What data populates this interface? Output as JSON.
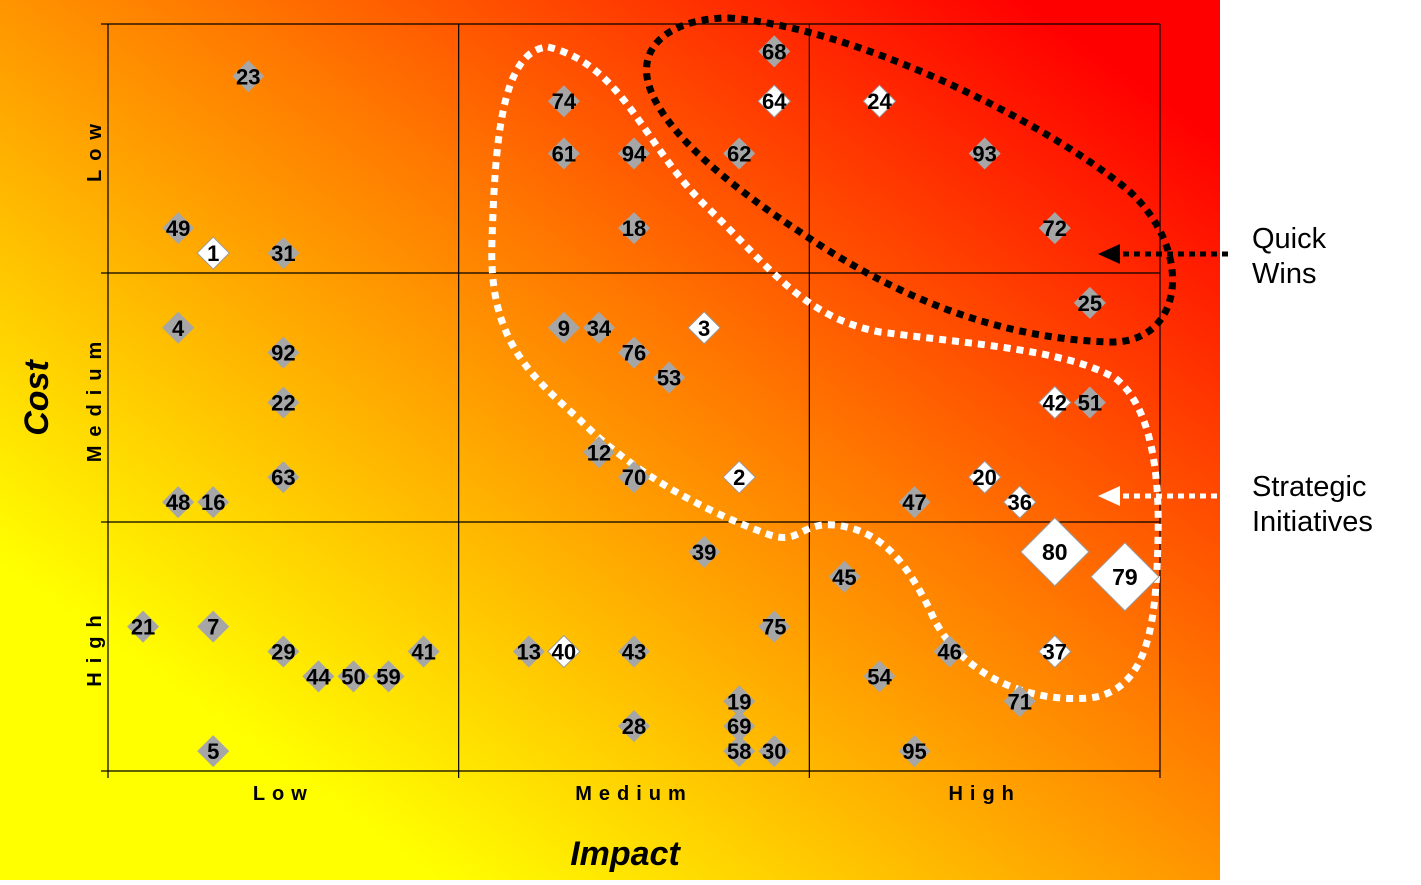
{
  "chart_data": {
    "type": "scatter",
    "title": "",
    "xlabel": "Impact",
    "ylabel": "Cost",
    "x_categories": [
      "Low",
      "Medium",
      "High"
    ],
    "y_categories": [
      "Low",
      "Medium",
      "High"
    ],
    "xlim": [
      0,
      3
    ],
    "ylim": [
      0,
      3
    ],
    "y_axis_note": "y measured downward from top (Low cost at top, High cost at bottom)",
    "grid": true,
    "marker": "diamond",
    "colors": {
      "bg_low": "#ffff00",
      "bg_mid": "#ff7a00",
      "bg_high": "#ff0000",
      "marker_gray": "#a6a6a6",
      "marker_white": "#ffffff",
      "quick_wins": "#000000",
      "strategic": "#ffffff"
    },
    "points": [
      {
        "label": "68",
        "x": 1.9,
        "y": 0.11,
        "fill": "gray",
        "size": "m"
      },
      {
        "label": "23",
        "x": 0.4,
        "y": 0.21,
        "fill": "gray",
        "size": "m"
      },
      {
        "label": "74",
        "x": 1.3,
        "y": 0.31,
        "fill": "gray",
        "size": "m"
      },
      {
        "label": "64",
        "x": 1.9,
        "y": 0.31,
        "fill": "white",
        "size": "m"
      },
      {
        "label": "24",
        "x": 2.2,
        "y": 0.31,
        "fill": "white",
        "size": "m"
      },
      {
        "label": "61",
        "x": 1.3,
        "y": 0.52,
        "fill": "gray",
        "size": "m"
      },
      {
        "label": "94",
        "x": 1.5,
        "y": 0.52,
        "fill": "gray",
        "size": "m"
      },
      {
        "label": "62",
        "x": 1.8,
        "y": 0.52,
        "fill": "gray",
        "size": "m"
      },
      {
        "label": "93",
        "x": 2.5,
        "y": 0.52,
        "fill": "gray",
        "size": "m"
      },
      {
        "label": "49",
        "x": 0.2,
        "y": 0.82,
        "fill": "gray",
        "size": "m"
      },
      {
        "label": "18",
        "x": 1.5,
        "y": 0.82,
        "fill": "gray",
        "size": "m"
      },
      {
        "label": "72",
        "x": 2.7,
        "y": 0.82,
        "fill": "gray",
        "size": "m"
      },
      {
        "label": "1",
        "x": 0.3,
        "y": 0.92,
        "fill": "white",
        "size": "m"
      },
      {
        "label": "31",
        "x": 0.5,
        "y": 0.92,
        "fill": "gray",
        "size": "m"
      },
      {
        "label": "25",
        "x": 2.8,
        "y": 1.12,
        "fill": "gray",
        "size": "m"
      },
      {
        "label": "4",
        "x": 0.2,
        "y": 1.22,
        "fill": "gray",
        "size": "m"
      },
      {
        "label": "9",
        "x": 1.3,
        "y": 1.22,
        "fill": "gray",
        "size": "m"
      },
      {
        "label": "34",
        "x": 1.4,
        "y": 1.22,
        "fill": "gray",
        "size": "m"
      },
      {
        "label": "3",
        "x": 1.7,
        "y": 1.22,
        "fill": "white",
        "size": "m"
      },
      {
        "label": "92",
        "x": 0.5,
        "y": 1.32,
        "fill": "gray",
        "size": "m"
      },
      {
        "label": "76",
        "x": 1.5,
        "y": 1.32,
        "fill": "gray",
        "size": "m"
      },
      {
        "label": "53",
        "x": 1.6,
        "y": 1.42,
        "fill": "gray",
        "size": "m"
      },
      {
        "label": "22",
        "x": 0.5,
        "y": 1.52,
        "fill": "gray",
        "size": "m"
      },
      {
        "label": "42",
        "x": 2.7,
        "y": 1.52,
        "fill": "white",
        "size": "m"
      },
      {
        "label": "51",
        "x": 2.8,
        "y": 1.52,
        "fill": "gray",
        "size": "m"
      },
      {
        "label": "12",
        "x": 1.4,
        "y": 1.72,
        "fill": "gray",
        "size": "m"
      },
      {
        "label": "63",
        "x": 0.5,
        "y": 1.82,
        "fill": "gray",
        "size": "m"
      },
      {
        "label": "70",
        "x": 1.5,
        "y": 1.82,
        "fill": "gray",
        "size": "m"
      },
      {
        "label": "2",
        "x": 1.8,
        "y": 1.82,
        "fill": "white",
        "size": "m"
      },
      {
        "label": "20",
        "x": 2.5,
        "y": 1.82,
        "fill": "white",
        "size": "m"
      },
      {
        "label": "48",
        "x": 0.2,
        "y": 1.92,
        "fill": "gray",
        "size": "m"
      },
      {
        "label": "16",
        "x": 0.3,
        "y": 1.92,
        "fill": "gray",
        "size": "m"
      },
      {
        "label": "47",
        "x": 2.3,
        "y": 1.92,
        "fill": "gray",
        "size": "m"
      },
      {
        "label": "36",
        "x": 2.6,
        "y": 1.92,
        "fill": "white",
        "size": "m"
      },
      {
        "label": "80",
        "x": 2.7,
        "y": 2.12,
        "fill": "white",
        "size": "l"
      },
      {
        "label": "39",
        "x": 1.7,
        "y": 2.12,
        "fill": "gray",
        "size": "m"
      },
      {
        "label": "79",
        "x": 2.9,
        "y": 2.22,
        "fill": "white",
        "size": "l"
      },
      {
        "label": "45",
        "x": 2.1,
        "y": 2.22,
        "fill": "gray",
        "size": "m"
      },
      {
        "label": "21",
        "x": 0.1,
        "y": 2.42,
        "fill": "gray",
        "size": "m"
      },
      {
        "label": "7",
        "x": 0.3,
        "y": 2.42,
        "fill": "gray",
        "size": "m"
      },
      {
        "label": "75",
        "x": 1.9,
        "y": 2.42,
        "fill": "gray",
        "size": "m"
      },
      {
        "label": "29",
        "x": 0.5,
        "y": 2.52,
        "fill": "gray",
        "size": "m"
      },
      {
        "label": "41",
        "x": 0.9,
        "y": 2.52,
        "fill": "gray",
        "size": "m"
      },
      {
        "label": "13",
        "x": 1.2,
        "y": 2.52,
        "fill": "gray",
        "size": "m"
      },
      {
        "label": "40",
        "x": 1.3,
        "y": 2.52,
        "fill": "white",
        "size": "m"
      },
      {
        "label": "43",
        "x": 1.5,
        "y": 2.52,
        "fill": "gray",
        "size": "m"
      },
      {
        "label": "46",
        "x": 2.4,
        "y": 2.52,
        "fill": "gray",
        "size": "m"
      },
      {
        "label": "37",
        "x": 2.7,
        "y": 2.52,
        "fill": "white",
        "size": "m"
      },
      {
        "label": "44",
        "x": 0.6,
        "y": 2.62,
        "fill": "gray",
        "size": "m"
      },
      {
        "label": "50",
        "x": 0.7,
        "y": 2.62,
        "fill": "gray",
        "size": "m"
      },
      {
        "label": "59",
        "x": 0.8,
        "y": 2.62,
        "fill": "gray",
        "size": "m"
      },
      {
        "label": "54",
        "x": 2.2,
        "y": 2.62,
        "fill": "gray",
        "size": "m"
      },
      {
        "label": "19",
        "x": 1.8,
        "y": 2.72,
        "fill": "gray",
        "size": "m"
      },
      {
        "label": "71",
        "x": 2.6,
        "y": 2.72,
        "fill": "gray",
        "size": "m"
      },
      {
        "label": "28",
        "x": 1.5,
        "y": 2.82,
        "fill": "gray",
        "size": "m"
      },
      {
        "label": "69",
        "x": 1.8,
        "y": 2.82,
        "fill": "gray",
        "size": "m"
      },
      {
        "label": "5",
        "x": 0.3,
        "y": 2.92,
        "fill": "gray",
        "size": "m"
      },
      {
        "label": "58",
        "x": 1.8,
        "y": 2.92,
        "fill": "gray",
        "size": "m"
      },
      {
        "label": "30",
        "x": 1.9,
        "y": 2.92,
        "fill": "gray",
        "size": "m"
      },
      {
        "label": "95",
        "x": 2.3,
        "y": 2.92,
        "fill": "gray",
        "size": "m"
      }
    ],
    "annotations": [
      {
        "name": "quick-wins",
        "lines": [
          "Quick",
          "Wins"
        ],
        "style": "black-dotted-loop"
      },
      {
        "name": "strategic-initiatives",
        "lines": [
          "Strategic",
          "Initiatives"
        ],
        "style": "white-dotted-loop"
      }
    ]
  }
}
